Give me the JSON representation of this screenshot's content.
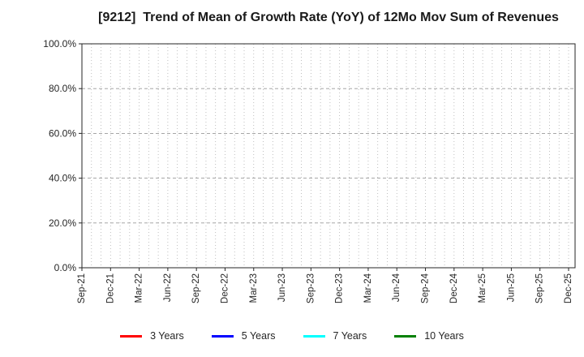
{
  "figure": {
    "background": "#ffffff",
    "text_color": "#262626",
    "spine_color": "#262626",
    "grid_minor_color": "#b0b0b0",
    "grid_major_color": "#999999"
  },
  "chart_data": {
    "type": "line",
    "title": "[9212]  Trend of Mean of Growth Rate (YoY) of 12Mo Mov Sum of Revenues",
    "xlabel": "",
    "ylabel": "",
    "ylim": [
      0,
      100
    ],
    "y_tick_values": [
      0,
      20,
      40,
      60,
      80,
      100
    ],
    "y_tick_labels": [
      "0.0%",
      "20.0%",
      "40.0%",
      "60.0%",
      "80.0%",
      "100.0%"
    ],
    "x_month_count": 52,
    "x_months_per_label": 3,
    "x_tick_labels": [
      "Sep-21",
      "Dec-21",
      "Mar-22",
      "Jun-22",
      "Sep-22",
      "Dec-22",
      "Mar-23",
      "Jun-23",
      "Sep-23",
      "Dec-23",
      "Mar-24",
      "Jun-24",
      "Sep-24",
      "Dec-24",
      "Mar-25",
      "Jun-25",
      "Sep-25",
      "Dec-25"
    ],
    "grid": true,
    "legend_position": "bottom",
    "series": [
      {
        "name": "3 Years",
        "color": "#ff0000",
        "values": []
      },
      {
        "name": "5 Years",
        "color": "#0000ff",
        "values": []
      },
      {
        "name": "7 Years",
        "color": "#00ffff",
        "values": []
      },
      {
        "name": "10 Years",
        "color": "#008000",
        "values": []
      }
    ]
  }
}
